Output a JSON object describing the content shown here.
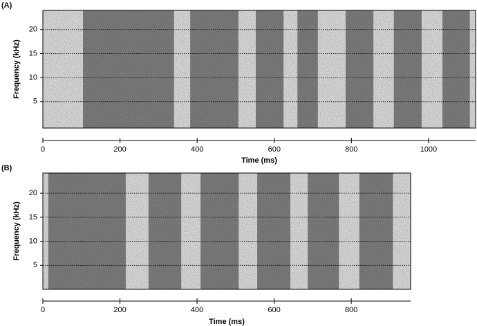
{
  "chart_data": [
    {
      "type": "spectrogram",
      "panel_label": "(A)",
      "xlabel": "Time (ms)",
      "ylabel": "Frequency (kHz)",
      "xlim": [
        0,
        1122
      ],
      "ylim": [
        -0.5,
        24
      ],
      "xticks": [
        0,
        200,
        400,
        600,
        800,
        1000
      ],
      "yticks": [
        5,
        10,
        15,
        20
      ],
      "grid": "dotted",
      "color": "#2e2e2e",
      "segments": [
        [
          104,
          340
        ],
        [
          382,
          507
        ],
        [
          552,
          624
        ],
        [
          660,
          713
        ],
        [
          785,
          857
        ],
        [
          910,
          982
        ],
        [
          1036,
          1107
        ]
      ]
    },
    {
      "type": "spectrogram",
      "panel_label": "(B)",
      "xlabel": "Time (ms)",
      "ylabel": "Frequency (kHz)",
      "xlim": [
        0,
        954
      ],
      "ylim": [
        0,
        24.2
      ],
      "xticks": [
        0,
        200,
        400,
        600,
        800
      ],
      "yticks": [
        5,
        10,
        15,
        20
      ],
      "grid": "dotted",
      "color": "#2e2e2e",
      "segments": [
        [
          14,
          215
        ],
        [
          274,
          359
        ],
        [
          409,
          508
        ],
        [
          556,
          642
        ],
        [
          687,
          768
        ],
        [
          821,
          908
        ]
      ]
    }
  ]
}
